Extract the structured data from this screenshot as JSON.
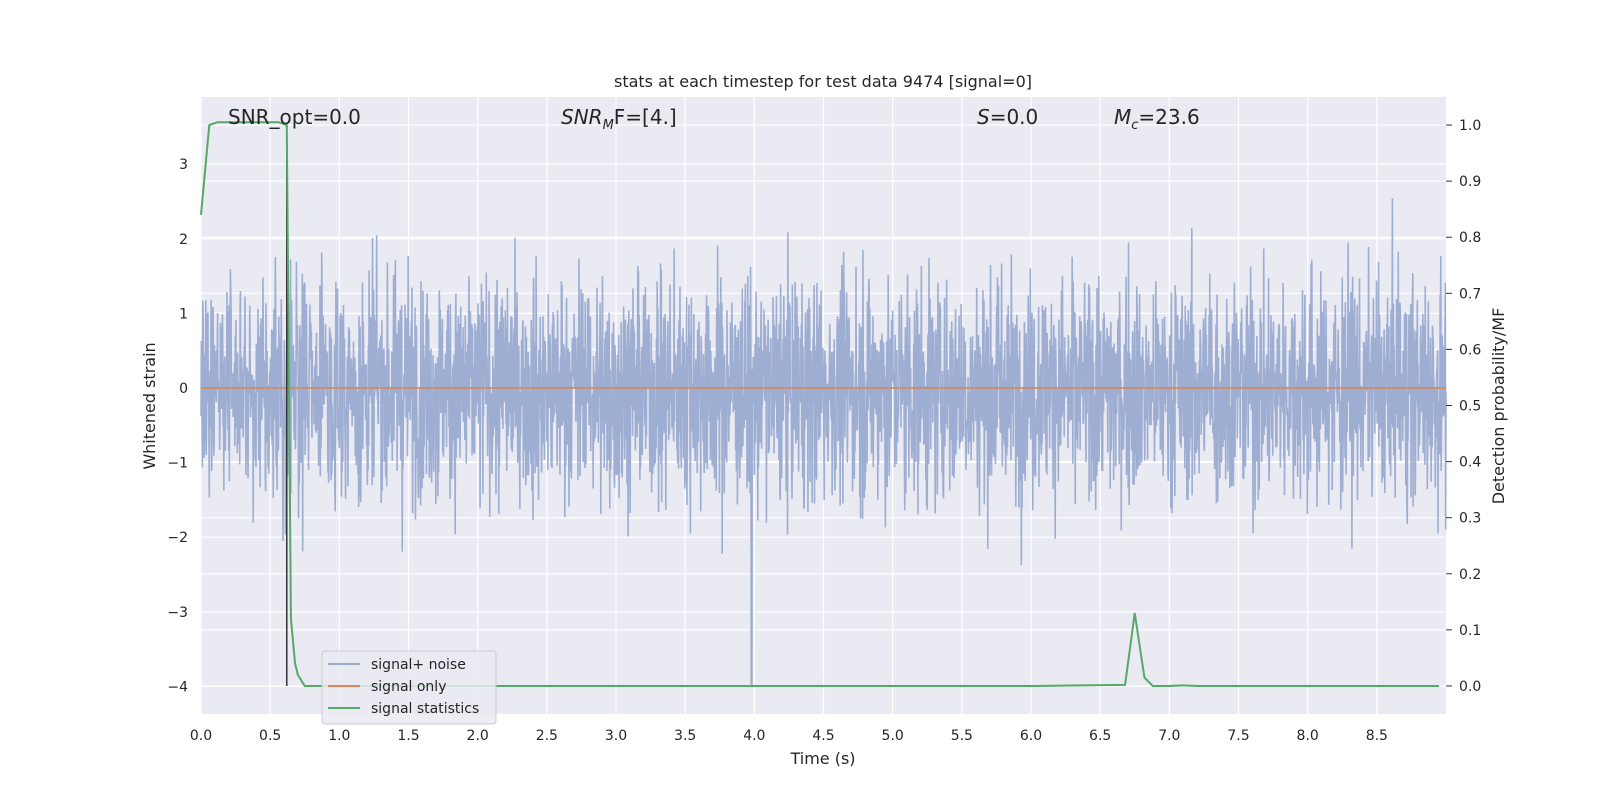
{
  "chart_data": {
    "type": "line",
    "title": "stats at each timestep for test data 9474 [signal=0]",
    "xlabel": "Time (s)",
    "ylabel_left": "Whitened strain",
    "ylabel_right": "Detection probability/MF",
    "xlim": [
      0,
      9.0
    ],
    "ylim_left": [
      -4.37,
      3.9
    ],
    "ylim_right": [
      -0.05,
      1.05
    ],
    "x_ticks": [
      "0.0",
      "0.5",
      "1.0",
      "1.5",
      "2.0",
      "2.5",
      "3.0",
      "3.5",
      "4.0",
      "4.5",
      "5.0",
      "5.5",
      "6.0",
      "6.5",
      "7.0",
      "7.5",
      "8.0",
      "8.5"
    ],
    "y_left_ticks": [
      3,
      2,
      1,
      0,
      -1,
      -2,
      -3,
      -4
    ],
    "y_left_tick_labels": [
      "3",
      "2",
      "1",
      "0",
      "−1",
      "−2",
      "−3",
      "−4"
    ],
    "y_right_ticks": [
      "1.0",
      "0.9",
      "0.8",
      "0.7",
      "0.6",
      "0.5",
      "0.4",
      "0.3",
      "0.2",
      "0.1",
      "0.0"
    ],
    "grid": true,
    "legend_position": "lower-left",
    "annotations": {
      "snr_opt": "SNR_opt=0.0",
      "snr_mf_name": "SNR",
      "snr_mf_sub": "M",
      "snr_mf_rest": "F=[4.]",
      "s_name": "S",
      "s_rest": "=0.0",
      "mc_name": "M",
      "mc_sub": "c",
      "mc_rest": "=23.6"
    },
    "vline_x": 0.62,
    "series": [
      {
        "name": "signal+ noise",
        "color": "#9aabd0",
        "axis": "left",
        "noise_summary": {
          "t_start": 0.0,
          "t_end": 9.0,
          "typical_range": [
            -1.8,
            1.8
          ],
          "max": 3.55,
          "min": -4.0,
          "spike": {
            "t": 3.98,
            "y": -4.0
          }
        }
      },
      {
        "name": "signal only",
        "color": "#dd8452",
        "axis": "left",
        "x": [
          0.0,
          9.0
        ],
        "y": [
          0.0,
          0.0
        ]
      },
      {
        "name": "signal statistics",
        "color": "#55a868",
        "axis": "right",
        "x": [
          0.0,
          0.06,
          0.12,
          0.2,
          0.3,
          0.4,
          0.5,
          0.56,
          0.62,
          0.65,
          0.68,
          0.7,
          0.75,
          0.8,
          1.5,
          3.0,
          4.5,
          6.0,
          6.68,
          6.75,
          6.82,
          6.88,
          7.0,
          7.1,
          7.2,
          8.0,
          8.95
        ],
        "y": [
          0.84,
          1.0,
          1.005,
          1.005,
          1.005,
          1.005,
          1.005,
          1.005,
          1.0,
          0.12,
          0.04,
          0.02,
          0.0,
          0.0,
          0.0,
          0.0,
          0.0,
          0.0,
          0.002,
          0.13,
          0.015,
          0.0,
          0.0,
          0.001,
          0.0,
          0.0,
          0.0
        ]
      }
    ]
  }
}
